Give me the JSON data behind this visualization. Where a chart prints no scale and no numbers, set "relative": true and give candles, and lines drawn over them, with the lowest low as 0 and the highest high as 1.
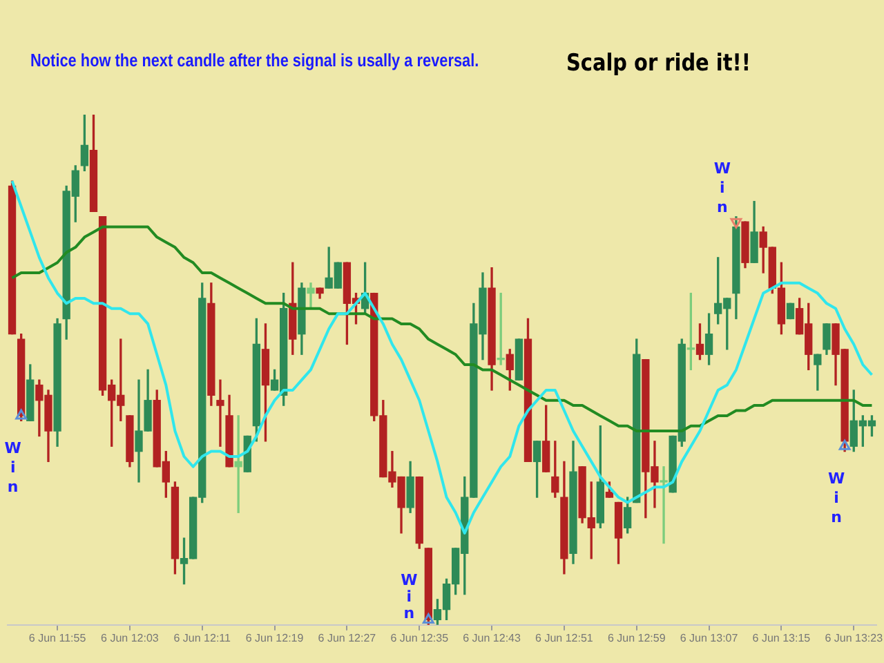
{
  "chart_data": {
    "type": "candlestick",
    "title": "Notice how the next candle after the signal is usally a reversal.",
    "subtitle": "Scalp or ride it!!",
    "relative": true,
    "grid": false,
    "legend": false,
    "tick_labels": "x",
    "categories": [
      null,
      null,
      null,
      null,
      null,
      "6 Jun 11:55",
      null,
      null,
      null,
      null,
      null,
      null,
      null,
      "6 Jun 12:03",
      null,
      null,
      null,
      null,
      null,
      null,
      null,
      "6 Jun 12:11",
      null,
      null,
      null,
      null,
      null,
      null,
      null,
      "6 Jun 12:19",
      null,
      null,
      null,
      null,
      null,
      null,
      null,
      "6 Jun 12:27",
      null,
      null,
      null,
      null,
      null,
      null,
      null,
      "6 Jun 12:35",
      null,
      null,
      null,
      null,
      null,
      null,
      null,
      "6 Jun 12:43",
      null,
      null,
      null,
      null,
      null,
      null,
      null,
      "6 Jun 12:51",
      null,
      null,
      null,
      null,
      null,
      null,
      null,
      "6 Jun 12:59",
      null,
      null,
      null,
      null,
      null,
      null,
      null,
      "6 Jun 13:07",
      null,
      null,
      null,
      null,
      null,
      null,
      null,
      "6 Jun 13:15",
      null,
      null,
      null,
      null,
      null,
      null,
      null,
      "6 Jun 13:23",
      null,
      null
    ],
    "ohlc": [
      [
        0.86,
        0.87,
        0.57,
        0.57
      ],
      [
        0.56,
        0.57,
        0.4,
        0.41
      ],
      [
        0.4,
        0.51,
        0.4,
        0.48
      ],
      [
        0.47,
        0.48,
        0.37,
        0.44
      ],
      [
        0.45,
        0.46,
        0.32,
        0.38
      ],
      [
        0.38,
        0.6,
        0.35,
        0.59
      ],
      [
        0.6,
        0.86,
        0.56,
        0.85
      ],
      [
        0.84,
        0.9,
        0.79,
        0.89
      ],
      [
        0.9,
        1,
        0.89,
        0.94
      ],
      [
        0.93,
        1,
        0.81,
        0.81
      ],
      [
        0.8,
        0.8,
        0.45,
        0.46
      ],
      [
        0.47,
        0.48,
        0.35,
        0.44
      ],
      [
        0.45,
        0.56,
        0.4,
        0.43
      ],
      [
        0.41,
        0.41,
        0.31,
        0.32
      ],
      [
        0.34,
        0.48,
        0.28,
        0.38
      ],
      [
        0.38,
        0.5,
        0.38,
        0.44
      ],
      [
        0.44,
        0.46,
        0.31,
        0.31
      ],
      [
        0.32,
        0.34,
        0.25,
        0.28
      ],
      [
        0.27,
        0.28,
        0.1,
        0.13
      ],
      [
        0.12,
        0.17,
        0.08,
        0.13
      ],
      [
        0.13,
        0.25,
        0.13,
        0.25
      ],
      [
        0.25,
        0.67,
        0.24,
        0.64
      ],
      [
        0.63,
        0.67,
        0.43,
        0.45
      ],
      [
        0.44,
        0.48,
        0.35,
        0.43
      ],
      [
        0.41,
        0.45,
        0.31,
        0.31
      ],
      [
        0.31,
        0.41,
        0.22,
        0.32
      ],
      [
        0.3,
        0.37,
        0.3,
        0.37
      ],
      [
        0.39,
        0.6,
        0.36,
        0.55
      ],
      [
        0.54,
        0.59,
        0.36,
        0.47
      ],
      [
        0.46,
        0.5,
        0.46,
        0.48
      ],
      [
        0.45,
        0.65,
        0.43,
        0.62
      ],
      [
        0.63,
        0.71,
        0.53,
        0.56
      ],
      [
        0.57,
        0.67,
        0.53,
        0.66
      ],
      [
        0.65,
        0.67,
        0.62,
        0.66
      ],
      [
        0.66,
        0.66,
        0.64,
        0.65
      ],
      [
        0.66,
        0.74,
        0.66,
        0.68
      ],
      [
        0.66,
        0.71,
        0.66,
        0.71
      ],
      [
        0.71,
        0.71,
        0.55,
        0.63
      ],
      [
        0.64,
        0.65,
        0.59,
        0.63
      ],
      [
        0.62,
        0.71,
        0.61,
        0.65
      ],
      [
        0.65,
        0.65,
        0.4,
        0.41
      ],
      [
        0.41,
        0.44,
        0.29,
        0.29
      ],
      [
        0.3,
        0.34,
        0.27,
        0.28
      ],
      [
        0.29,
        0.29,
        0.18,
        0.23
      ],
      [
        0.23,
        0.32,
        0.22,
        0.29
      ],
      [
        0.29,
        0.29,
        0.15,
        0.16
      ],
      [
        0.15,
        0.15,
        0,
        0.01
      ],
      [
        0.01,
        0.05,
        0,
        0.03
      ],
      [
        0.03,
        0.09,
        0.01,
        0.08
      ],
      [
        0.08,
        0.15,
        0.06,
        0.15
      ],
      [
        0.14,
        0.29,
        0.06,
        0.25
      ],
      [
        0.25,
        0.63,
        0.25,
        0.59
      ],
      [
        0.57,
        0.69,
        0.52,
        0.66
      ],
      [
        0.66,
        0.7,
        0.46,
        0.51
      ],
      [
        0.52,
        0.65,
        0.51,
        0.52
      ],
      [
        0.53,
        0.54,
        0.46,
        0.5
      ],
      [
        0.48,
        0.56,
        0.48,
        0.56
      ],
      [
        0.56,
        0.6,
        0.32,
        0.32
      ],
      [
        0.32,
        0.36,
        0.25,
        0.36
      ],
      [
        0.36,
        0.43,
        0.3,
        0.3
      ],
      [
        0.29,
        0.36,
        0.25,
        0.26
      ],
      [
        0.25,
        0.32,
        0.1,
        0.13
      ],
      [
        0.14,
        0.36,
        0.12,
        0.3
      ],
      [
        0.31,
        0.31,
        0.2,
        0.21
      ],
      [
        0.21,
        0.28,
        0.13,
        0.19
      ],
      [
        0.2,
        0.39,
        0.19,
        0.28
      ],
      [
        0.26,
        0.28,
        0.25,
        0.25
      ],
      [
        0.24,
        0.24,
        0.12,
        0.17
      ],
      [
        0.19,
        0.25,
        0.18,
        0.23
      ],
      [
        0.24,
        0.56,
        0.24,
        0.53
      ],
      [
        0.52,
        0.52,
        0.21,
        0.3
      ],
      [
        0.31,
        0.36,
        0.23,
        0.28
      ],
      [
        0.28,
        0.31,
        0.16,
        0.28
      ],
      [
        0.26,
        0.37,
        0.26,
        0.37
      ],
      [
        0.36,
        0.56,
        0.35,
        0.55
      ],
      [
        0.54,
        0.65,
        0.5,
        0.54
      ],
      [
        0.55,
        0.59,
        0.52,
        0.53
      ],
      [
        0.53,
        0.61,
        0.51,
        0.57
      ],
      [
        0.61,
        0.72,
        0.59,
        0.63
      ],
      [
        0.62,
        0.64,
        0.54,
        0.64
      ],
      [
        0.65,
        0.8,
        0.6,
        0.78
      ],
      [
        0.79,
        0.79,
        0.7,
        0.71
      ],
      [
        0.71,
        0.83,
        0.71,
        0.77
      ],
      [
        0.77,
        0.78,
        0.69,
        0.74
      ],
      [
        0.74,
        0.74,
        0.65,
        0.66
      ],
      [
        0.66,
        0.71,
        0.57,
        0.59
      ],
      [
        0.6,
        0.63,
        0.6,
        0.63
      ],
      [
        0.62,
        0.64,
        0.57,
        0.57
      ],
      [
        0.59,
        0.63,
        0.5,
        0.53
      ],
      [
        0.51,
        0.53,
        0.46,
        0.53
      ],
      [
        0.54,
        0.59,
        0.53,
        0.59
      ],
      [
        0.59,
        0.59,
        0.47,
        0.53
      ],
      [
        0.54,
        0.54,
        0.34,
        0.36
      ],
      [
        0.35,
        0.46,
        0.34,
        0.4
      ],
      [
        0.39,
        0.41,
        0.35,
        0.4
      ],
      [
        0.39,
        0.41,
        0.37,
        0.4
      ]
    ],
    "colors": [
      "#b22222",
      "#b22222",
      "#2e8b57",
      "#b22222",
      "#b22222",
      "#2e8b57",
      "#2e8b57",
      "#2e8b57",
      "#2e8b57",
      "#b22222",
      "#b22222",
      "#b22222",
      "#b22222",
      "#b22222",
      "#2e8b57",
      "#2e8b57",
      "#b22222",
      "#b22222",
      "#b22222",
      "#2e8b57",
      "#2e8b57",
      "#2e8b57",
      "#b22222",
      "#b22222",
      "#b22222",
      "#7ccd7c",
      "#2e8b57",
      "#2e8b57",
      "#b22222",
      "#2e8b57",
      "#2e8b57",
      "#b22222",
      "#2e8b57",
      "#7ccd7c",
      "#b22222",
      "#2e8b57",
      "#2e8b57",
      "#b22222",
      "#b22222",
      "#2e8b57",
      "#b22222",
      "#b22222",
      "#b22222",
      "#b22222",
      "#2e8b57",
      "#b22222",
      "#b22222",
      "#2e8b57",
      "#2e8b57",
      "#2e8b57",
      "#2e8b57",
      "#2e8b57",
      "#2e8b57",
      "#b22222",
      "#7ccd7c",
      "#b22222",
      "#2e8b57",
      "#b22222",
      "#2e8b57",
      "#b22222",
      "#b22222",
      "#b22222",
      "#2e8b57",
      "#b22222",
      "#b22222",
      "#2e8b57",
      "#b22222",
      "#b22222",
      "#2e8b57",
      "#2e8b57",
      "#b22222",
      "#b22222",
      "#7ccd7c",
      "#2e8b57",
      "#2e8b57",
      "#7ccd7c",
      "#b22222",
      "#2e8b57",
      "#2e8b57",
      "#2e8b57",
      "#2e8b57",
      "#b22222",
      "#2e8b57",
      "#b22222",
      "#b22222",
      "#b22222",
      "#2e8b57",
      "#b22222",
      "#b22222",
      "#2e8b57",
      "#2e8b57",
      "#b22222",
      "#b22222",
      "#2e8b57",
      "#2e8b57",
      "#2e8b57"
    ],
    "series": [
      {
        "type": "line",
        "color": "#30e6ec",
        "marker": "none",
        "values": [
          0.87,
          0.82,
          0.77,
          0.72,
          0.68,
          0.65,
          0.63,
          0.64,
          0.64,
          0.63,
          0.63,
          0.62,
          0.62,
          0.61,
          0.61,
          0.59,
          0.53,
          0.47,
          0.38,
          0.33,
          0.31,
          0.33,
          0.34,
          0.34,
          0.33,
          0.33,
          0.34,
          0.37,
          0.41,
          0.44,
          0.46,
          0.46,
          0.48,
          0.5,
          0.54,
          0.58,
          0.61,
          0.61,
          0.63,
          0.65,
          0.62,
          0.59,
          0.55,
          0.52,
          0.48,
          0.44,
          0.38,
          0.32,
          0.25,
          0.22,
          0.18,
          0.22,
          0.25,
          0.28,
          0.31,
          0.33,
          0.39,
          0.42,
          0.44,
          0.46,
          0.46,
          0.42,
          0.38,
          0.35,
          0.32,
          0.29,
          0.27,
          0.25,
          0.24,
          0.25,
          0.26,
          0.27,
          0.27,
          0.28,
          0.32,
          0.35,
          0.38,
          0.42,
          0.46,
          0.47,
          0.5,
          0.55,
          0.6,
          0.65,
          0.66,
          0.67,
          0.67,
          0.67,
          0.66,
          0.65,
          0.63,
          0.62,
          0.58,
          0.55,
          0.51,
          0.49
        ]
      },
      {
        "type": "line",
        "color": "#228b22",
        "marker": "none",
        "values": [
          0.68,
          0.69,
          0.69,
          0.69,
          0.7,
          0.71,
          0.73,
          0.74,
          0.76,
          0.77,
          0.78,
          0.78,
          0.78,
          0.78,
          0.78,
          0.78,
          0.76,
          0.75,
          0.74,
          0.72,
          0.71,
          0.69,
          0.69,
          0.68,
          0.67,
          0.66,
          0.65,
          0.64,
          0.63,
          0.63,
          0.63,
          0.62,
          0.62,
          0.62,
          0.62,
          0.61,
          0.61,
          0.61,
          0.61,
          0.61,
          0.6,
          0.6,
          0.6,
          0.59,
          0.59,
          0.58,
          0.56,
          0.55,
          0.54,
          0.53,
          0.51,
          0.51,
          0.5,
          0.5,
          0.49,
          0.48,
          0.47,
          0.46,
          0.45,
          0.44,
          0.44,
          0.44,
          0.43,
          0.43,
          0.42,
          0.41,
          0.4,
          0.39,
          0.39,
          0.38,
          0.38,
          0.38,
          0.38,
          0.38,
          0.38,
          0.39,
          0.39,
          0.4,
          0.41,
          0.41,
          0.42,
          0.42,
          0.43,
          0.43,
          0.44,
          0.44,
          0.44,
          0.44,
          0.44,
          0.44,
          0.44,
          0.44,
          0.44,
          0.44,
          0.43,
          0.43
        ]
      },
      {
        "type": "scatter",
        "marker": "triangle",
        "colors": [
          null,
          "#5b8fd8",
          null,
          null,
          null,
          null,
          null,
          null,
          null,
          null,
          null,
          null,
          null,
          null,
          null,
          null,
          null,
          null,
          null,
          null,
          null,
          null,
          null,
          null,
          null,
          null,
          null,
          null,
          null,
          null,
          null,
          null,
          null,
          null,
          null,
          null,
          null,
          null,
          null,
          null,
          null,
          null,
          null,
          null,
          null,
          null,
          "#5b8fd8",
          null,
          null,
          null,
          null,
          null,
          null,
          null,
          null,
          null,
          null,
          null,
          null,
          null,
          null,
          null,
          null,
          null,
          null,
          null,
          null,
          null,
          null,
          null,
          null,
          null,
          null,
          null,
          null,
          null,
          null,
          null,
          null,
          null,
          "#e8806c",
          null,
          null,
          null,
          null,
          null,
          null,
          null,
          null,
          null,
          null,
          null,
          "#5b8fd8",
          null,
          null,
          null
        ],
        "values": [
          null,
          0.41,
          null,
          null,
          null,
          null,
          null,
          null,
          null,
          null,
          null,
          null,
          null,
          null,
          null,
          null,
          null,
          null,
          null,
          null,
          null,
          null,
          null,
          null,
          null,
          null,
          null,
          null,
          null,
          null,
          null,
          null,
          null,
          null,
          null,
          null,
          null,
          null,
          null,
          null,
          null,
          null,
          null,
          null,
          null,
          null,
          0.01,
          null,
          null,
          null,
          null,
          null,
          null,
          null,
          null,
          null,
          null,
          null,
          null,
          null,
          null,
          null,
          null,
          null,
          null,
          null,
          null,
          null,
          null,
          null,
          null,
          null,
          null,
          null,
          null,
          null,
          null,
          null,
          null,
          null,
          0.79,
          null,
          null,
          null,
          null,
          null,
          null,
          null,
          null,
          null,
          null,
          null,
          0.35,
          null,
          null,
          null
        ]
      }
    ],
    "annotations": [
      "Win",
      "Win",
      "Win",
      "Win"
    ]
  }
}
